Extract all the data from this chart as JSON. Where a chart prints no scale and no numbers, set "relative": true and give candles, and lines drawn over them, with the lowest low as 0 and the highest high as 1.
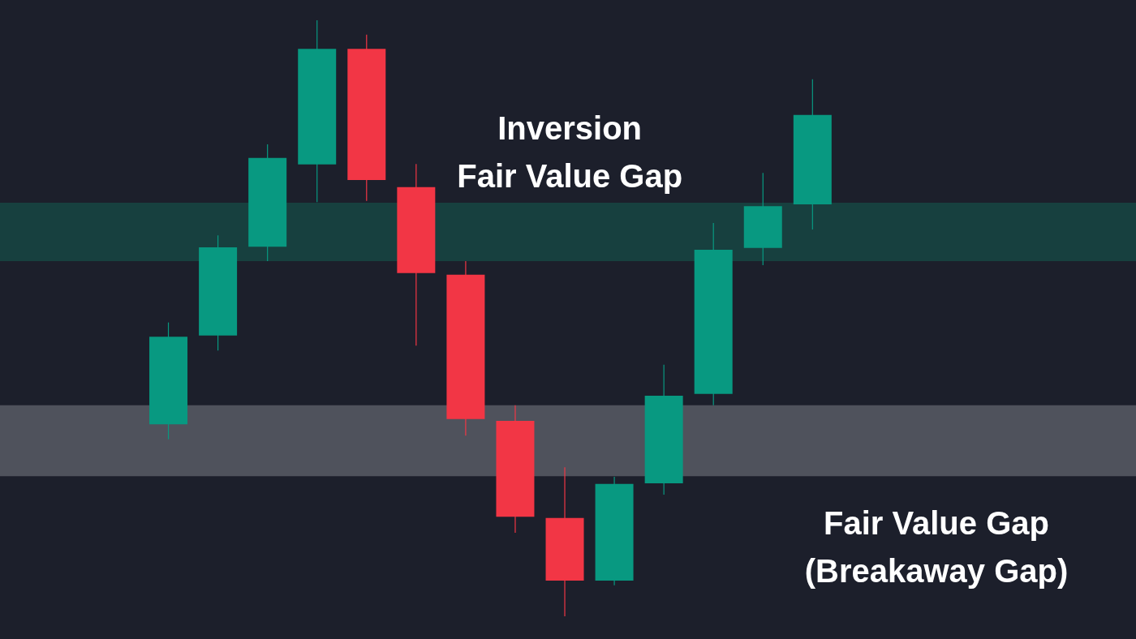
{
  "chart_data": {
    "type": "candlestick",
    "relative": true,
    "categories": [
      null,
      null,
      null,
      null,
      null,
      null,
      null,
      null,
      null,
      null,
      null,
      null,
      null,
      null
    ],
    "ohlc": [
      [
        0.322,
        0.493,
        0.297,
        0.469
      ],
      [
        0.471,
        0.639,
        0.446,
        0.619
      ],
      [
        0.62,
        0.792,
        0.596,
        0.769
      ],
      [
        0.758,
        1.0,
        0.695,
        0.952
      ],
      [
        0.952,
        0.976,
        0.697,
        0.732
      ],
      [
        0.72,
        0.759,
        0.454,
        0.576
      ],
      [
        0.573,
        0.596,
        0.303,
        0.331
      ],
      [
        0.328,
        0.354,
        0.14,
        0.167
      ],
      [
        0.165,
        0.25,
        0.0,
        0.06
      ],
      [
        0.06,
        0.234,
        0.052,
        0.222
      ],
      [
        0.223,
        0.422,
        0.204,
        0.37
      ],
      [
        0.373,
        0.66,
        0.354,
        0.615
      ],
      [
        0.618,
        0.744,
        0.589,
        0.688
      ],
      [
        0.691,
        0.901,
        0.649,
        0.841
      ]
    ],
    "colors": [
      "#089981",
      "#089981",
      "#089981",
      "#089981",
      "#f23645",
      "#f23645",
      "#f23645",
      "#f23645",
      "#f23645",
      "#089981",
      "#089981",
      "#089981",
      "#089981",
      "#089981"
    ],
    "bands": [
      {
        "axis": "y",
        "from": 0.596,
        "to": 0.694,
        "label": "Inversion\nFair Value Gap",
        "color": "#17403f"
      },
      {
        "axis": "y",
        "from": 0.235,
        "to": 0.354,
        "label": "Fair Value Gap\n(Breakaway Gap)",
        "color": "#4f525c"
      }
    ]
  }
}
